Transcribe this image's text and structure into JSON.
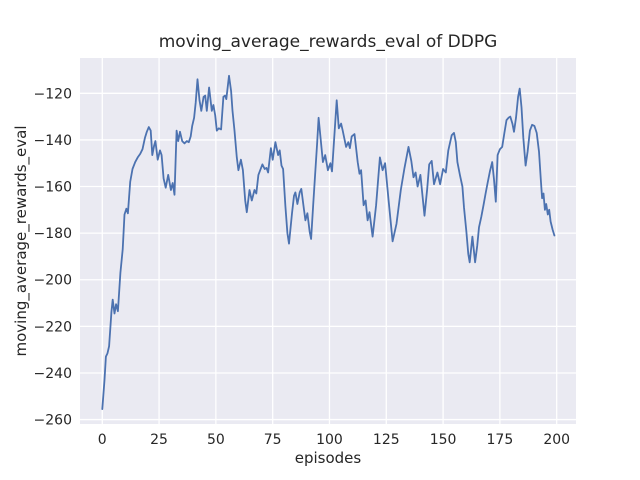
{
  "figure": {
    "background": "#ffffff"
  },
  "chart_data": {
    "type": "line",
    "title": "moving_average_rewards_eval of DDPG",
    "xlabel": "episodes",
    "ylabel": "moving_average_rewards_eval",
    "x_ticks": [
      0,
      25,
      50,
      75,
      100,
      125,
      150,
      175,
      200
    ],
    "y_ticks": [
      -120,
      -140,
      -160,
      -180,
      -200,
      -220,
      -240,
      -260
    ],
    "xlim": [
      -9.8,
      208.5
    ],
    "ylim": [
      -261.9,
      -104.85
    ],
    "grid": true,
    "legend_position": "none",
    "style": {
      "axes_background": "#eaeaf2",
      "grid_color": "#ffffff",
      "line_color": "#4c72b0",
      "text_color": "#262626",
      "line_width": 1.8
    },
    "series": [
      {
        "name": "DDPG moving average rewards (eval)",
        "points": [
          [
            0,
            -255.5
          ],
          [
            1,
            -243
          ],
          [
            1.6,
            -233
          ],
          [
            2.3,
            -231.5
          ],
          [
            3,
            -228.5
          ],
          [
            4,
            -214
          ],
          [
            4.6,
            -208.5
          ],
          [
            5.4,
            -214.5
          ],
          [
            6.1,
            -210.5
          ],
          [
            6.9,
            -213.5
          ],
          [
            8,
            -197
          ],
          [
            9,
            -187
          ],
          [
            9.8,
            -172
          ],
          [
            10.6,
            -169.5
          ],
          [
            11.3,
            -171.5
          ],
          [
            12.3,
            -158
          ],
          [
            13.3,
            -152.5
          ],
          [
            14.5,
            -149.5
          ],
          [
            15.6,
            -147.5
          ],
          [
            16.7,
            -146
          ],
          [
            17.7,
            -144
          ],
          [
            18.8,
            -139
          ],
          [
            19.6,
            -136.5
          ],
          [
            20.5,
            -134.5
          ],
          [
            21.3,
            -136
          ],
          [
            22,
            -146.5
          ],
          [
            22.8,
            -142.5
          ],
          [
            23.4,
            -140.5
          ],
          [
            24.4,
            -148.5
          ],
          [
            25.4,
            -144.5
          ],
          [
            26.1,
            -146.5
          ],
          [
            27,
            -156.5
          ],
          [
            27.9,
            -160.5
          ],
          [
            29,
            -155
          ],
          [
            30.2,
            -161.5
          ],
          [
            31,
            -158.5
          ],
          [
            31.8,
            -163.5
          ],
          [
            32.7,
            -136
          ],
          [
            33.4,
            -140.5
          ],
          [
            34.2,
            -136.5
          ],
          [
            35.2,
            -140.5
          ],
          [
            36.2,
            -141.5
          ],
          [
            37.2,
            -140.5
          ],
          [
            38.1,
            -141
          ],
          [
            38.9,
            -138.5
          ],
          [
            39.6,
            -134
          ],
          [
            40.4,
            -130.5
          ],
          [
            41.1,
            -124
          ],
          [
            41.9,
            -114
          ],
          [
            42.8,
            -123
          ],
          [
            43.6,
            -127.5
          ],
          [
            44.6,
            -121.5
          ],
          [
            45.3,
            -121
          ],
          [
            46,
            -127.5
          ],
          [
            47,
            -117.5
          ],
          [
            48.2,
            -127.5
          ],
          [
            48.9,
            -125
          ],
          [
            49.7,
            -129.5
          ],
          [
            50.4,
            -136
          ],
          [
            51.3,
            -135
          ],
          [
            52.3,
            -135.5
          ],
          [
            53.3,
            -121.5
          ],
          [
            54,
            -121
          ],
          [
            54.6,
            -122.5
          ],
          [
            55.8,
            -112.5
          ],
          [
            56.7,
            -119
          ],
          [
            57.3,
            -127.5
          ],
          [
            58.2,
            -136
          ],
          [
            59.2,
            -147.5
          ],
          [
            59.9,
            -153
          ],
          [
            61,
            -148.5
          ],
          [
            61.9,
            -153
          ],
          [
            62.9,
            -166
          ],
          [
            63.6,
            -171
          ],
          [
            64.8,
            -161.5
          ],
          [
            65.8,
            -166
          ],
          [
            67,
            -161.5
          ],
          [
            67.8,
            -163
          ],
          [
            68.7,
            -155
          ],
          [
            69.5,
            -153
          ],
          [
            70.5,
            -150.5
          ],
          [
            71.5,
            -152.5
          ],
          [
            72.3,
            -152
          ],
          [
            73,
            -154
          ],
          [
            74.2,
            -143.5
          ],
          [
            75,
            -148.5
          ],
          [
            76.2,
            -141
          ],
          [
            77.4,
            -146.5
          ],
          [
            78.1,
            -144.5
          ],
          [
            78.9,
            -151
          ],
          [
            79.6,
            -152.5
          ],
          [
            80.6,
            -168.5
          ],
          [
            81.5,
            -180
          ],
          [
            82.2,
            -184.5
          ],
          [
            83.5,
            -171.5
          ],
          [
            84.4,
            -164
          ],
          [
            85,
            -162.5
          ],
          [
            85.9,
            -167.5
          ],
          [
            86.9,
            -162.5
          ],
          [
            87.6,
            -161
          ],
          [
            88.8,
            -170
          ],
          [
            89.4,
            -174.5
          ],
          [
            90.3,
            -171.5
          ],
          [
            91.3,
            -179.5
          ],
          [
            91.9,
            -182.5
          ],
          [
            92.8,
            -168.5
          ],
          [
            93.8,
            -153
          ],
          [
            94.6,
            -141
          ],
          [
            95.2,
            -130.5
          ],
          [
            97.1,
            -149.5
          ],
          [
            98.1,
            -146.5
          ],
          [
            99.3,
            -153
          ],
          [
            100.4,
            -150
          ],
          [
            101.1,
            -153.5
          ],
          [
            103.2,
            -123
          ],
          [
            104.1,
            -135
          ],
          [
            105.1,
            -133
          ],
          [
            105.8,
            -136
          ],
          [
            107.3,
            -143
          ],
          [
            108.3,
            -141
          ],
          [
            109,
            -143.5
          ],
          [
            109.8,
            -138.5
          ],
          [
            111,
            -137.5
          ],
          [
            112.4,
            -149.5
          ],
          [
            113.2,
            -154.5
          ],
          [
            113.9,
            -153
          ],
          [
            115,
            -168
          ],
          [
            115.9,
            -166
          ],
          [
            116.8,
            -174.5
          ],
          [
            117.6,
            -171
          ],
          [
            119,
            -181.5
          ],
          [
            120.5,
            -168
          ],
          [
            122.2,
            -147.5
          ],
          [
            123.4,
            -153
          ],
          [
            124.5,
            -150
          ],
          [
            126,
            -166
          ],
          [
            127.8,
            -183.5
          ],
          [
            129.5,
            -176
          ],
          [
            131.4,
            -161.5
          ],
          [
            133,
            -152
          ],
          [
            134.8,
            -143
          ],
          [
            136,
            -149
          ],
          [
            137,
            -156
          ],
          [
            137.9,
            -154
          ],
          [
            138.8,
            -160
          ],
          [
            140,
            -155
          ],
          [
            141.8,
            -172.5
          ],
          [
            143,
            -161
          ],
          [
            143.9,
            -150.5
          ],
          [
            145,
            -149
          ],
          [
            146,
            -159
          ],
          [
            147.5,
            -154
          ],
          [
            148.7,
            -159
          ],
          [
            150,
            -152.5
          ],
          [
            151.2,
            -154
          ],
          [
            152.3,
            -144.5
          ],
          [
            153.8,
            -138
          ],
          [
            154.8,
            -137
          ],
          [
            155.6,
            -141
          ],
          [
            156.3,
            -149.5
          ],
          [
            157.4,
            -155
          ],
          [
            158.5,
            -160
          ],
          [
            159.2,
            -169
          ],
          [
            160.2,
            -179
          ],
          [
            161.1,
            -189
          ],
          [
            161.7,
            -192.5
          ],
          [
            162.9,
            -181.5
          ],
          [
            164.1,
            -192.5
          ],
          [
            165,
            -185.5
          ],
          [
            165.8,
            -177.5
          ],
          [
            166.8,
            -173
          ],
          [
            167.8,
            -168
          ],
          [
            168.7,
            -163
          ],
          [
            169.6,
            -158.5
          ],
          [
            170.6,
            -153.5
          ],
          [
            171.6,
            -149.5
          ],
          [
            172.4,
            -157
          ],
          [
            173.2,
            -166.5
          ],
          [
            174,
            -146.5
          ],
          [
            175,
            -144
          ],
          [
            176,
            -143
          ],
          [
            177,
            -137
          ],
          [
            177.9,
            -131.5
          ],
          [
            178.8,
            -130.5
          ],
          [
            179.6,
            -130
          ],
          [
            180.5,
            -133
          ],
          [
            181.2,
            -136.5
          ],
          [
            182.1,
            -130.5
          ],
          [
            183,
            -121.5
          ],
          [
            183.7,
            -118
          ],
          [
            184.5,
            -126
          ],
          [
            185.3,
            -139
          ],
          [
            186.3,
            -151
          ],
          [
            187.2,
            -145
          ],
          [
            188.2,
            -136
          ],
          [
            189.2,
            -133.5
          ],
          [
            190.2,
            -134
          ],
          [
            191.2,
            -137
          ],
          [
            192.2,
            -145
          ],
          [
            193,
            -157
          ],
          [
            193.6,
            -165
          ],
          [
            194.2,
            -163
          ],
          [
            194.8,
            -170
          ],
          [
            195.4,
            -167.5
          ],
          [
            196.1,
            -172
          ],
          [
            196.7,
            -170
          ],
          [
            197.3,
            -175
          ],
          [
            198.2,
            -178.5
          ],
          [
            199,
            -181
          ]
        ]
      }
    ]
  }
}
